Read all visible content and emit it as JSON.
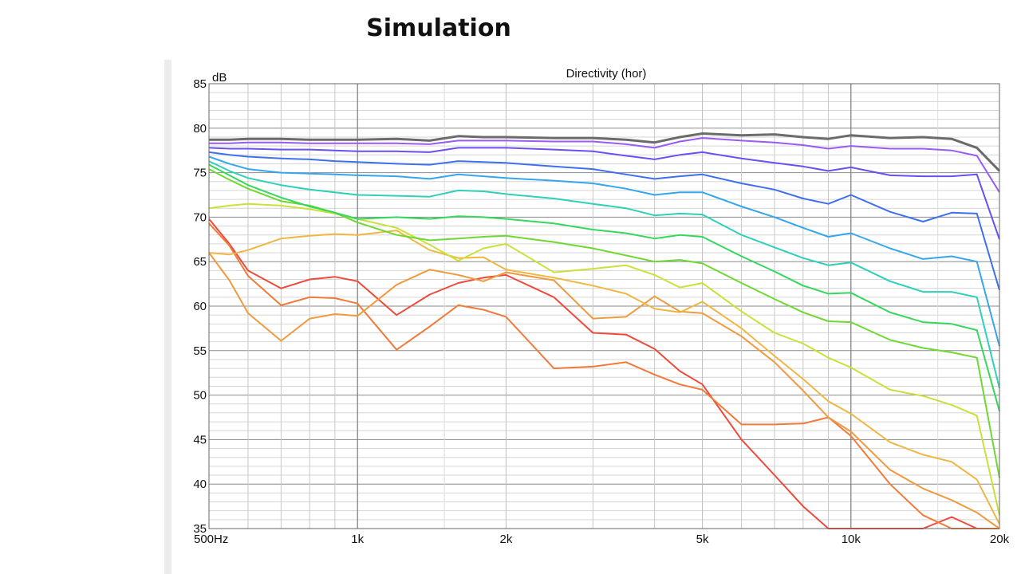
{
  "slide": {
    "title": "Simulation"
  },
  "chart_data": {
    "type": "line",
    "title": "Directivity (hor)",
    "ylabel": "dB",
    "xscale": "log",
    "xlim": [
      500,
      20000
    ],
    "ylim": [
      35,
      85
    ],
    "grid": true,
    "x_ticks": [
      {
        "value": 500,
        "label": "500Hz"
      },
      {
        "value": 1000,
        "label": "1k"
      },
      {
        "value": 2000,
        "label": "2k"
      },
      {
        "value": 5000,
        "label": "5k"
      },
      {
        "value": 10000,
        "label": "10k"
      },
      {
        "value": 20000,
        "label": "20k"
      }
    ],
    "y_ticks": [
      85,
      80,
      75,
      70,
      65,
      60,
      55,
      50,
      45,
      40,
      35
    ],
    "x": [
      500,
      550,
      600,
      700,
      800,
      900,
      1000,
      1200,
      1400,
      1600,
      1800,
      2000,
      2500,
      3000,
      3500,
      4000,
      4500,
      5000,
      6000,
      7000,
      8000,
      9000,
      10000,
      12000,
      14000,
      16000,
      18000,
      20000
    ],
    "series": [
      {
        "color": "#6b6b6b",
        "width": 3,
        "values": [
          78.7,
          78.7,
          78.8,
          78.8,
          78.7,
          78.7,
          78.7,
          78.8,
          78.6,
          79.1,
          79.0,
          79.0,
          78.9,
          78.9,
          78.7,
          78.4,
          79.0,
          79.4,
          79.2,
          79.3,
          79.0,
          78.8,
          79.2,
          78.9,
          79.0,
          78.8,
          77.8,
          75.2
        ]
      },
      {
        "color": "#9b59f5",
        "width": 2,
        "values": [
          78.3,
          78.3,
          78.4,
          78.4,
          78.3,
          78.3,
          78.3,
          78.3,
          78.2,
          78.6,
          78.6,
          78.6,
          78.5,
          78.5,
          78.2,
          77.8,
          78.5,
          78.9,
          78.6,
          78.4,
          78.1,
          77.7,
          78.0,
          77.7,
          77.7,
          77.5,
          76.9,
          72.8
        ]
      },
      {
        "color": "#6a4ff2",
        "width": 2,
        "values": [
          77.8,
          77.7,
          77.7,
          77.6,
          77.6,
          77.5,
          77.4,
          77.4,
          77.3,
          77.8,
          77.8,
          77.8,
          77.6,
          77.4,
          76.9,
          76.5,
          77.0,
          77.3,
          76.6,
          76.1,
          75.7,
          75.2,
          75.6,
          74.7,
          74.6,
          74.6,
          74.8,
          67.5
        ]
      },
      {
        "color": "#3f6ff0",
        "width": 2,
        "values": [
          77.3,
          77.0,
          76.8,
          76.6,
          76.5,
          76.3,
          76.2,
          76.0,
          75.9,
          76.3,
          76.2,
          76.1,
          75.7,
          75.4,
          74.8,
          74.3,
          74.6,
          74.8,
          73.8,
          73.1,
          72.1,
          71.5,
          72.5,
          70.6,
          69.5,
          70.5,
          70.4,
          61.8
        ]
      },
      {
        "color": "#34a6ee",
        "width": 2,
        "values": [
          76.8,
          76.0,
          75.4,
          75.0,
          74.9,
          74.8,
          74.7,
          74.6,
          74.3,
          74.8,
          74.6,
          74.4,
          74.1,
          73.8,
          73.2,
          72.5,
          72.8,
          72.8,
          71.2,
          70.0,
          68.8,
          67.8,
          68.2,
          66.5,
          65.3,
          65.6,
          65.0,
          55.5
        ]
      },
      {
        "color": "#2fd0b8",
        "width": 2,
        "values": [
          76.3,
          75.2,
          74.4,
          73.6,
          73.1,
          72.8,
          72.5,
          72.4,
          72.3,
          73.0,
          72.9,
          72.6,
          72.1,
          71.5,
          71.0,
          70.2,
          70.4,
          70.3,
          68.0,
          66.6,
          65.4,
          64.6,
          64.9,
          62.8,
          61.6,
          61.6,
          61.0,
          50.8
        ]
      },
      {
        "color": "#35d85c",
        "width": 2,
        "values": [
          75.9,
          74.7,
          73.6,
          72.2,
          71.2,
          70.5,
          69.8,
          70.0,
          69.8,
          70.1,
          70.0,
          69.8,
          69.3,
          68.6,
          68.2,
          67.6,
          68.0,
          67.8,
          65.6,
          63.9,
          62.3,
          61.4,
          61.5,
          59.3,
          58.2,
          58.0,
          57.3,
          48.2
        ]
      },
      {
        "color": "#6fd832",
        "width": 2,
        "values": [
          75.4,
          74.2,
          73.2,
          71.8,
          71.3,
          70.5,
          69.4,
          68.0,
          67.4,
          67.6,
          67.8,
          67.9,
          67.2,
          66.5,
          65.7,
          65.0,
          65.2,
          64.8,
          62.6,
          60.8,
          59.3,
          58.3,
          58.2,
          56.2,
          55.3,
          54.8,
          54.2,
          40.7
        ]
      },
      {
        "color": "#cbe038",
        "width": 2,
        "values": [
          71.0,
          71.3,
          71.5,
          71.3,
          70.9,
          70.4,
          69.8,
          68.8,
          66.9,
          65.1,
          66.5,
          67.0,
          63.8,
          64.2,
          64.6,
          63.5,
          62.1,
          62.6,
          59.4,
          57.0,
          55.8,
          54.2,
          53.1,
          50.6,
          49.9,
          48.9,
          47.7,
          36.5
        ]
      },
      {
        "color": "#f0b642",
        "width": 2,
        "values": [
          66.0,
          65.8,
          66.3,
          67.6,
          67.9,
          68.1,
          68.0,
          68.5,
          66.3,
          65.4,
          65.5,
          64.1,
          63.2,
          62.3,
          61.4,
          59.7,
          59.3,
          60.5,
          57.5,
          54.4,
          51.8,
          49.3,
          47.9,
          44.7,
          43.3,
          42.5,
          40.5,
          35.5
        ]
      },
      {
        "color": "#f09a3e",
        "width": 2,
        "values": [
          66.0,
          62.9,
          59.2,
          56.1,
          58.6,
          59.1,
          58.9,
          62.4,
          64.1,
          63.5,
          62.8,
          63.8,
          62.9,
          58.6,
          58.8,
          61.1,
          59.4,
          59.2,
          56.6,
          53.7,
          50.5,
          47.5,
          45.9,
          41.6,
          39.5,
          38.2,
          36.8,
          35.0
        ]
      },
      {
        "color": "#f17a3a",
        "width": 2,
        "values": [
          69.3,
          66.8,
          63.4,
          60.1,
          61.0,
          60.9,
          60.3,
          55.1,
          57.7,
          60.1,
          59.6,
          58.8,
          53.0,
          53.2,
          53.7,
          52.3,
          51.2,
          50.6,
          46.7,
          46.7,
          46.8,
          47.5,
          45.4,
          40.0,
          36.5,
          35.0,
          35.0,
          35.0
        ]
      },
      {
        "color": "#ee4a3c",
        "width": 2,
        "values": [
          69.8,
          67.0,
          64.0,
          62.0,
          63.0,
          63.3,
          62.8,
          59.0,
          61.3,
          62.6,
          63.2,
          63.5,
          61.0,
          57.0,
          56.8,
          55.2,
          52.7,
          51.2,
          45.0,
          41.0,
          37.5,
          35.0,
          35.0,
          35.0,
          35.0,
          36.3,
          35.0,
          35.0
        ]
      }
    ]
  }
}
